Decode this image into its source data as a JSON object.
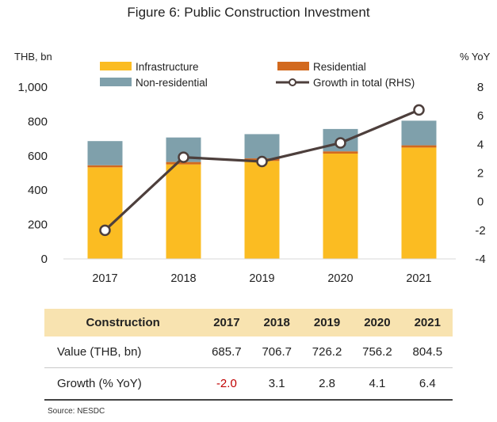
{
  "title": "Figure 6: Public Construction Investment",
  "colors": {
    "infrastructure": "#fbbc22",
    "residential": "#d2691e",
    "non_residential": "#7fa0ab",
    "growth_line": "#4d3f3c"
  },
  "chart_data": {
    "type": "bar",
    "stacked": true,
    "categories": [
      "2017",
      "2018",
      "2019",
      "2020",
      "2021"
    ],
    "series": [
      {
        "name": "Infrastructure",
        "values": [
          533,
          550,
          570,
          613,
          648
        ]
      },
      {
        "name": "Residential",
        "values": [
          12,
          14,
          15,
          13,
          13
        ]
      },
      {
        "name": "Non-residential",
        "values": [
          140.7,
          142.7,
          141.2,
          130.2,
          143.5
        ]
      }
    ],
    "line_series": {
      "name": "Growth in total (RHS)",
      "axis": "right",
      "values": [
        -2.0,
        3.1,
        2.8,
        4.1,
        6.4
      ]
    },
    "y_left": {
      "label": "THB, bn",
      "ylim": [
        0,
        1000
      ],
      "ticks": [
        "0",
        "200",
        "400",
        "600",
        "800",
        "1,000"
      ]
    },
    "y_right": {
      "label": "% YoY",
      "ylim": [
        -4,
        8
      ],
      "ticks": [
        "-4",
        "-2",
        "0",
        "2",
        "4",
        "6",
        "8"
      ]
    },
    "legend": [
      "Infrastructure",
      "Residential",
      "Non-residential",
      "Growth in total (RHS)"
    ],
    "legend_position": "top",
    "grid": false
  },
  "table": {
    "headers": [
      "Construction",
      "2017",
      "2018",
      "2019",
      "2020",
      "2021"
    ],
    "rows": [
      {
        "label": "Value (THB, bn)",
        "values": [
          "685.7",
          "706.7",
          "726.2",
          "756.2",
          "804.5"
        ]
      },
      {
        "label": "Growth (% YoY)",
        "values": [
          "-2.0",
          "3.1",
          "2.8",
          "4.1",
          "6.4"
        ]
      }
    ]
  },
  "source": "Source: NESDC"
}
